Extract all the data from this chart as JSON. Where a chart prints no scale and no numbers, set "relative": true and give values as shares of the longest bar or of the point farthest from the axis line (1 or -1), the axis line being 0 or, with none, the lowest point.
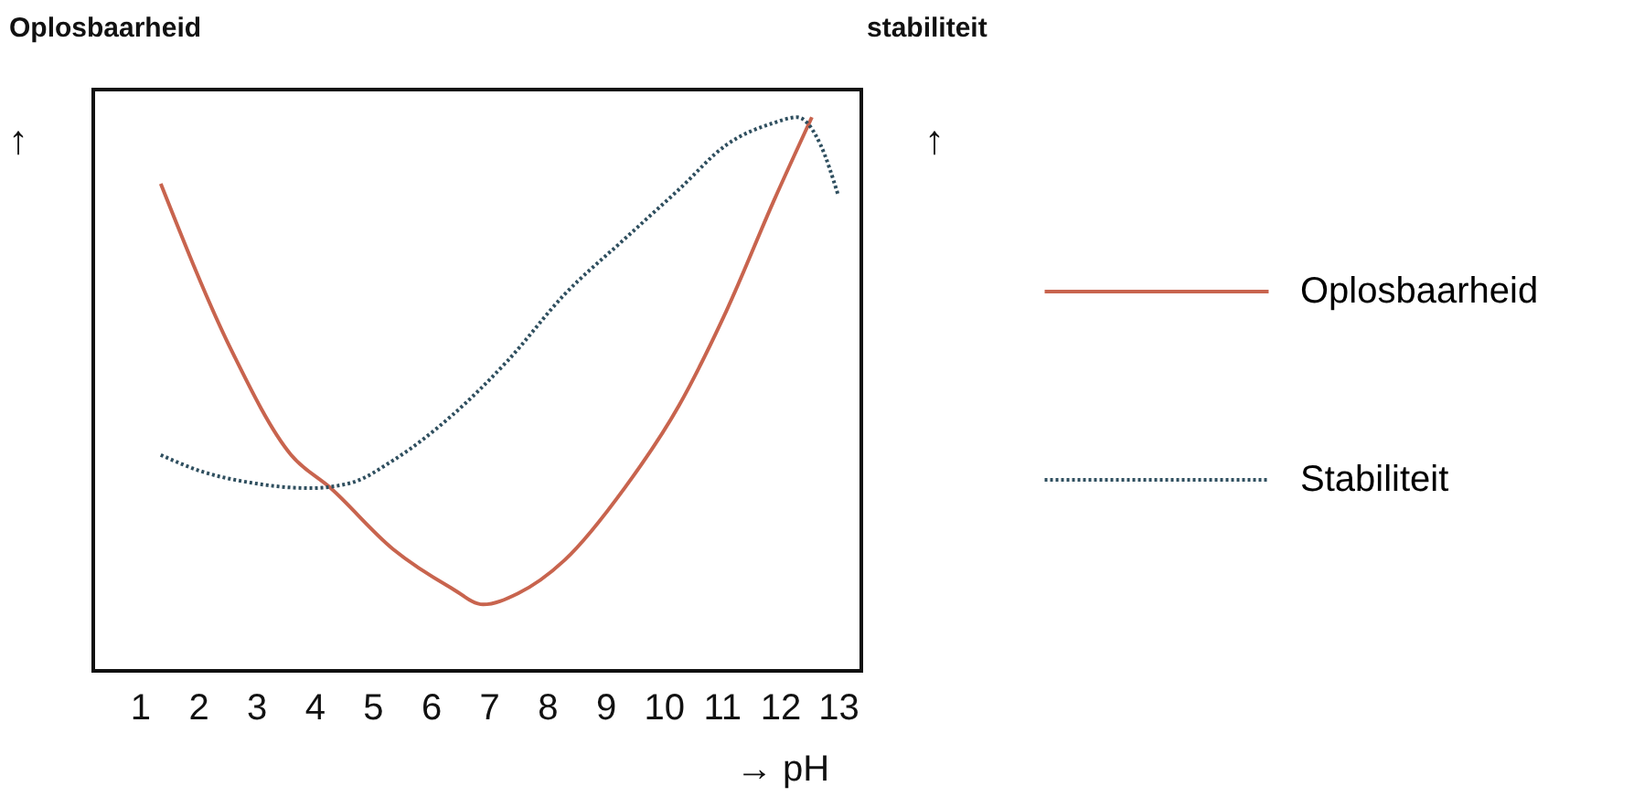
{
  "chart_data": {
    "type": "line",
    "relative": true,
    "ylabel": "Oplosbaarheid",
    "y2label": "stabiliteit",
    "xlabel": "→ pH",
    "annotations": [
      "↑",
      "↑"
    ],
    "xlim": [
      0.2,
      13.4
    ],
    "xticks": [
      1,
      2,
      3,
      4,
      5,
      6,
      7,
      8,
      9,
      10,
      11,
      12,
      13
    ],
    "legend": "right",
    "series": [
      {
        "name": "Oplosbaarheid",
        "color": "#c8644e",
        "line_style": "solid",
        "x": [
          1.36,
          2.57,
          3.6,
          4.28,
          5.35,
          6.35,
          6.9,
          7.5,
          8.3,
          9.33,
          10.27,
          11.08,
          11.9,
          12.55
        ],
        "values": [
          0.88,
          0.58,
          0.39,
          0.33,
          0.22,
          0.15,
          0.12,
          0.14,
          0.2,
          0.33,
          0.48,
          0.65,
          0.85,
          1.0
        ]
      },
      {
        "name": "Stabiliteit",
        "color": "#2f4f5f",
        "line_style": "dotted",
        "x": [
          1.36,
          2.07,
          2.9,
          3.93,
          4.64,
          5.35,
          6.35,
          7.32,
          8.3,
          9.33,
          10.27,
          11.08,
          11.9,
          12.3,
          12.7,
          13.0
        ],
        "values": [
          0.39,
          0.36,
          0.34,
          0.33,
          0.34,
          0.38,
          0.46,
          0.56,
          0.68,
          0.78,
          0.87,
          0.95,
          0.99,
          1.0,
          0.95,
          0.86
        ]
      }
    ]
  }
}
